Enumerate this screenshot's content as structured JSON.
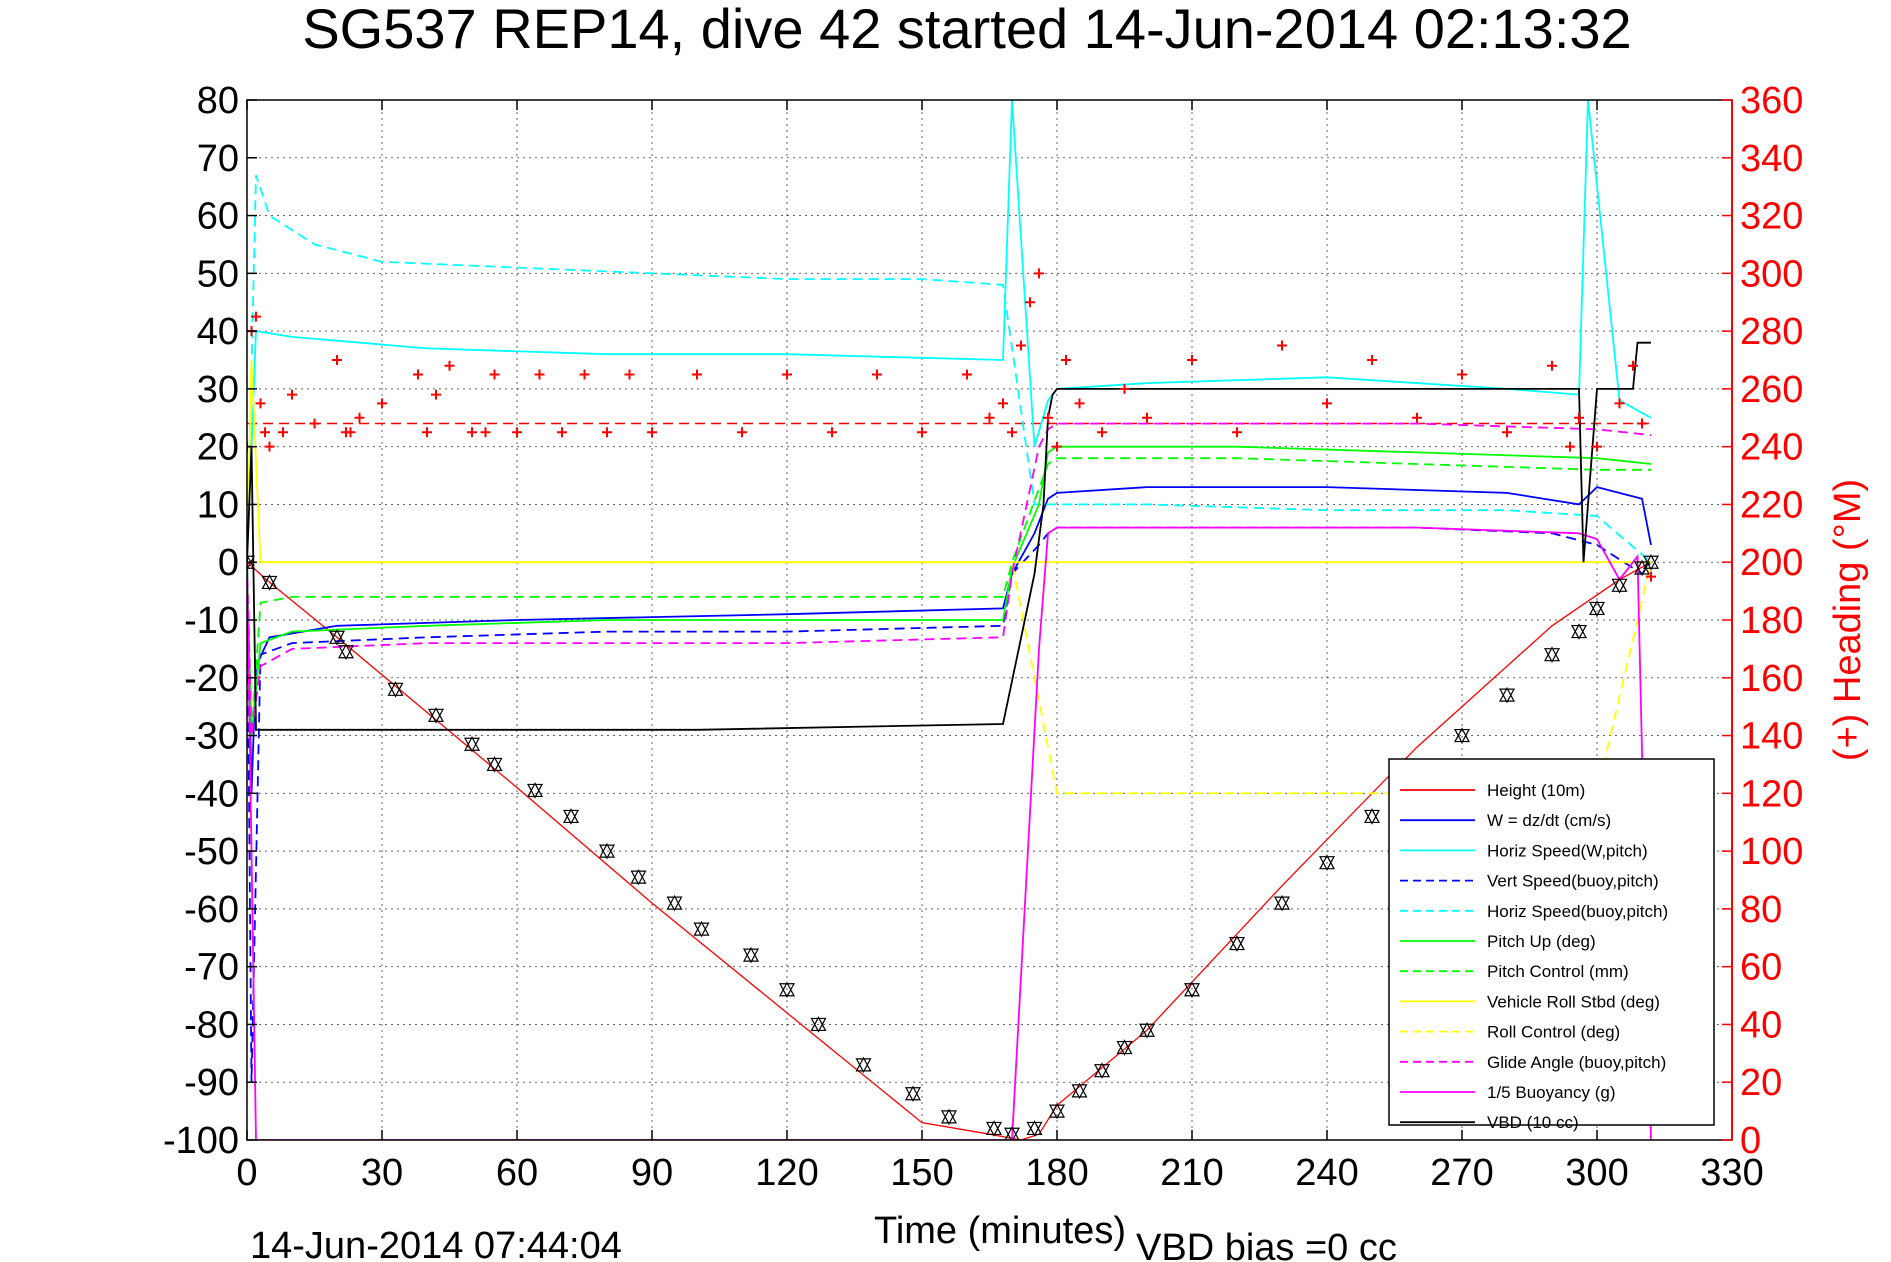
{
  "chart_data": {
    "type": "line",
    "title": "SG537 REP14, dive 42 started 14-Jun-2014 02:13:32",
    "xlabel": "Time (minutes)",
    "ylabel": "",
    "y2label": "(+) Heading (°M)",
    "footer_left": "14-Jun-2014 07:44:04",
    "footer_right": "VBD bias =0 cc",
    "xlim": [
      0,
      330
    ],
    "ylim": [
      -100,
      80
    ],
    "y2lim": [
      0,
      360
    ],
    "grid": true,
    "legend_position": "bottom-right",
    "x_ticks": [
      "0",
      "30",
      "60",
      "90",
      "120",
      "150",
      "180",
      "210",
      "240",
      "270",
      "300",
      "330"
    ],
    "y_ticks": [
      "80",
      "70",
      "60",
      "50",
      "40",
      "30",
      "20",
      "10",
      "0",
      "-10",
      "-20",
      "-30",
      "-40",
      "-50",
      "-60",
      "-70",
      "-80",
      "-90",
      "-100"
    ],
    "y2_ticks": [
      "360",
      "340",
      "320",
      "300",
      "280",
      "260",
      "240",
      "220",
      "200",
      "180",
      "160",
      "140",
      "120",
      "100",
      "80",
      "60",
      "40",
      "20",
      "0"
    ],
    "colors": {
      "height": "#ff0000",
      "w": "#0000ff",
      "horiz_speed": "#00ffff",
      "vert_speed_buoy": "#0000ff",
      "horiz_speed_buoy": "#00ffff",
      "pitch": "#00ff00",
      "pitch_control": "#00ff00",
      "roll": "#ffff00",
      "roll_control": "#ffff00",
      "glide_angle": "#ff00ff",
      "buoyancy": "#ff00ff",
      "vbd": "#000000",
      "heading": "#ff0000"
    },
    "series": [
      {
        "name": "Height (10m)",
        "style": "solid",
        "x": [
          0,
          5,
          20,
          40,
          60,
          90,
          120,
          150,
          165,
          172,
          176,
          180,
          200,
          230,
          260,
          290,
          305,
          312
        ],
        "values": [
          0,
          -3.5,
          -13,
          -26,
          -39,
          -59,
          -78,
          -97,
          -99,
          -100,
          -99,
          -94,
          -81,
          -56,
          -32,
          -11,
          -3,
          0
        ]
      },
      {
        "name": "W = dz/dt (cm/s)",
        "style": "solid",
        "x": [
          0,
          1,
          2,
          5,
          20,
          60,
          120,
          168,
          170,
          175,
          178,
          180,
          200,
          240,
          280,
          296,
          300,
          310,
          312
        ],
        "values": [
          0,
          -40,
          -18,
          -13,
          -11,
          -10,
          -9,
          -8,
          -2,
          5,
          11,
          12,
          13,
          13,
          12,
          10,
          13,
          11,
          3
        ]
      },
      {
        "name": "Horiz Speed(W,pitch)",
        "style": "solid",
        "x": [
          0,
          2,
          10,
          40,
          80,
          120,
          168,
          170,
          175,
          178,
          180,
          200,
          240,
          280,
          296,
          298,
          305,
          312
        ],
        "values": [
          0,
          40,
          39,
          37,
          36,
          36,
          35,
          80,
          20,
          28,
          30,
          31,
          32,
          30,
          29,
          80,
          28,
          25
        ]
      },
      {
        "name": "Vert Speed(buoy,pitch)",
        "style": "dashed",
        "x": [
          0,
          1,
          3,
          10,
          40,
          80,
          120,
          168,
          170,
          176,
          178,
          180,
          220,
          260,
          290,
          300,
          310,
          312
        ],
        "values": [
          0,
          -90,
          -16,
          -14,
          -13,
          -12,
          -12,
          -11,
          -2,
          3,
          5,
          6,
          6,
          6,
          5,
          3,
          -2,
          0
        ]
      },
      {
        "name": "Horiz Speed(buoy,pitch)",
        "style": "dashed",
        "x": [
          0,
          2,
          5,
          15,
          30,
          60,
          90,
          120,
          150,
          168,
          175,
          180,
          200,
          240,
          280,
          300,
          312
        ],
        "values": [
          0,
          67,
          60,
          55,
          52,
          51,
          50,
          49,
          49,
          48,
          10,
          10,
          10,
          9,
          9,
          8,
          0
        ]
      },
      {
        "name": "Pitch Up (deg)",
        "style": "solid",
        "x": [
          0,
          1,
          3,
          10,
          40,
          80,
          120,
          168,
          170,
          176,
          178,
          180,
          220,
          260,
          300,
          312
        ],
        "values": [
          0,
          -30,
          -14,
          -12,
          -11,
          -10,
          -10,
          -10,
          -1,
          10,
          19,
          20,
          20,
          19,
          18,
          17
        ]
      },
      {
        "name": "Pitch Control (mm)",
        "style": "dashed",
        "x": [
          0,
          1,
          3,
          10,
          40,
          80,
          120,
          168,
          170,
          178,
          180,
          220,
          260,
          300,
          312
        ],
        "values": [
          0,
          -30,
          -7,
          -6,
          -6,
          -6,
          -6,
          -6,
          0,
          17,
          18,
          18,
          17,
          16,
          16
        ]
      },
      {
        "name": "Vehicle Roll Stbd (deg)",
        "style": "solid",
        "x": [
          0,
          1,
          3,
          20,
          60,
          120,
          168,
          170,
          180,
          220,
          260,
          300,
          312
        ],
        "values": [
          0,
          35,
          0,
          0,
          0,
          0,
          0,
          0,
          0,
          0,
          0,
          0,
          0
        ]
      },
      {
        "name": "Roll Control (deg)",
        "style": "dashed",
        "x": [
          0,
          170,
          180,
          220,
          260,
          300,
          312
        ],
        "values": [
          0,
          0,
          -40,
          -40,
          -40,
          -40,
          0
        ]
      },
      {
        "name": "Glide Angle (buoy,pitch)",
        "style": "dashed",
        "x": [
          0,
          1,
          3,
          10,
          40,
          80,
          120,
          168,
          170,
          176,
          178,
          180,
          220,
          260,
          300,
          312
        ],
        "values": [
          0,
          -30,
          -18,
          -15,
          -14,
          -14,
          -14,
          -13,
          -2,
          20,
          23,
          24,
          24,
          24,
          23,
          22
        ]
      },
      {
        "name": "1/5 Buoyancy (g)",
        "style": "solid",
        "x": [
          0,
          2,
          3,
          168,
          170,
          176,
          178,
          180,
          220,
          260,
          296,
          300,
          305,
          309,
          312
        ],
        "values": [
          0,
          -100,
          -100,
          -100,
          -100,
          -15,
          5,
          6,
          6,
          6,
          5,
          4,
          -3,
          1,
          -100
        ]
      },
      {
        "name": "VBD (10 cc)",
        "style": "solid",
        "x": [
          0,
          1,
          2,
          3,
          5,
          40,
          100,
          168,
          175,
          177,
          178,
          179,
          180,
          220,
          260,
          296,
          297,
          300,
          308,
          309,
          312
        ],
        "values": [
          0,
          20,
          -29,
          -29,
          -29,
          -29,
          -29,
          -28,
          -2,
          10,
          25,
          29,
          30,
          30,
          30,
          30,
          0,
          30,
          30,
          38,
          38
        ]
      }
    ],
    "heading_markers": {
      "name": "(+) Heading",
      "axis": "right",
      "ref_line": 248,
      "x": [
        0,
        1,
        2,
        3,
        4,
        5,
        8,
        10,
        15,
        20,
        22,
        23,
        25,
        30,
        38,
        40,
        42,
        45,
        50,
        53,
        55,
        60,
        65,
        70,
        75,
        80,
        85,
        90,
        100,
        110,
        120,
        130,
        140,
        150,
        160,
        165,
        168,
        170,
        172,
        174,
        176,
        178,
        180,
        182,
        185,
        190,
        195,
        200,
        210,
        220,
        230,
        240,
        250,
        260,
        270,
        280,
        290,
        294,
        296,
        300,
        305,
        308,
        310,
        312
      ],
      "values": [
        240,
        280,
        285,
        255,
        245,
        240,
        245,
        258,
        248,
        270,
        245,
        245,
        250,
        255,
        265,
        245,
        258,
        268,
        245,
        245,
        265,
        245,
        265,
        245,
        265,
        245,
        265,
        245,
        265,
        245,
        265,
        245,
        265,
        245,
        265,
        250,
        255,
        245,
        275,
        290,
        300,
        250,
        240,
        270,
        255,
        245,
        260,
        250,
        270,
        245,
        275,
        255,
        270,
        250,
        265,
        245,
        268,
        240,
        250,
        240,
        255,
        268,
        248,
        195
      ]
    },
    "depth_markers": {
      "name": "depth samples",
      "x": [
        0,
        5,
        20,
        22,
        33,
        42,
        50,
        55,
        64,
        72,
        80,
        87,
        95,
        101,
        112,
        120,
        127,
        137,
        148,
        156,
        166,
        170,
        175,
        180,
        185,
        190,
        195,
        200,
        210,
        220,
        230,
        240,
        250,
        260,
        270,
        280,
        290,
        296,
        300,
        305,
        310,
        312
      ],
      "values": [
        0,
        -3.5,
        -13,
        -15.5,
        -22,
        -26.5,
        -31.5,
        -35,
        -39.5,
        -44,
        -50,
        -54.5,
        -59,
        -63.5,
        -68,
        -74,
        -80,
        -87,
        -92,
        -96,
        -98,
        -99,
        -98,
        -95,
        -91.5,
        -88,
        -84,
        -81,
        -74,
        -66,
        -59,
        -52,
        -44,
        -37,
        -30,
        -23,
        -16,
        -12,
        -8,
        -4,
        -1,
        0
      ]
    }
  }
}
